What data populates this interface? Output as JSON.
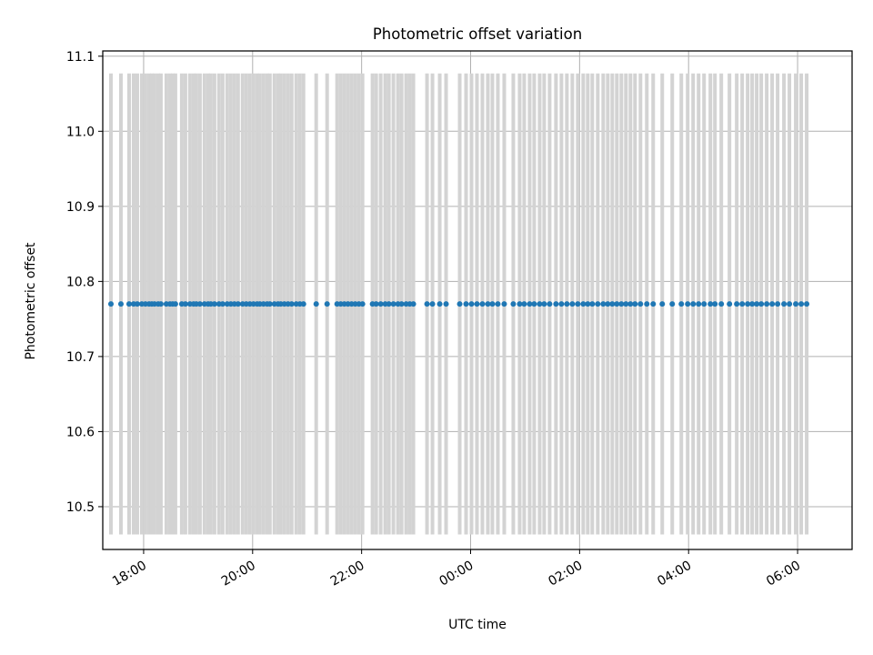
{
  "colors": {
    "marker": "#1f77b4",
    "errorbar": "#d3d3d3",
    "grid": "#b0b0b0",
    "axes": "#000000",
    "background": "#ffffff"
  },
  "chart_data": {
    "type": "scatter",
    "title": "Photometric offset variation",
    "xlabel": "UTC time",
    "ylabel": "Photometric offset",
    "grid": true,
    "x_format": "time HH:MM, labels rotated 30 degrees",
    "xlim": [
      "17:15",
      "31:00"
    ],
    "ylim": [
      10.443,
      11.107
    ],
    "x_ticks": [
      "18:00",
      "20:00",
      "22:00",
      "00:00",
      "02:00",
      "04:00",
      "06:00"
    ],
    "y_ticks": [
      "10.5",
      "10.6",
      "10.7",
      "10.8",
      "10.9",
      "11.0",
      "11.1"
    ],
    "series": [
      {
        "marker": "dot",
        "errorbar": {
          "low": 10.463,
          "high": 11.077
        },
        "y": 10.77,
        "x": [
          "17:24",
          "17:35",
          "17:44",
          "17:49",
          "17:53",
          "17:58",
          "18:02",
          "18:06",
          "18:09",
          "18:12",
          "18:16",
          "18:19",
          "18:25",
          "18:29",
          "18:32",
          "18:35",
          "18:42",
          "18:46",
          "18:51",
          "18:55",
          "18:58",
          "19:02",
          "19:07",
          "19:11",
          "19:14",
          "19:18",
          "19:23",
          "19:27",
          "19:32",
          "19:36",
          "19:40",
          "19:44",
          "19:49",
          "19:53",
          "19:57",
          "20:01",
          "20:05",
          "20:08",
          "20:12",
          "20:16",
          "20:19",
          "20:24",
          "20:28",
          "20:31",
          "20:35",
          "20:39",
          "20:43",
          "20:48",
          "20:52",
          "20:56",
          "21:10",
          "21:22",
          "21:33",
          "21:37",
          "21:41",
          "21:45",
          "21:49",
          "21:53",
          "21:57",
          "22:01",
          "22:12",
          "22:16",
          "22:21",
          "22:26",
          "22:30",
          "22:35",
          "22:40",
          "22:44",
          "22:49",
          "22:53",
          "22:57",
          "23:12",
          "23:18",
          "23:26",
          "23:33",
          "23:48",
          "23:55",
          "24:01",
          "24:07",
          "24:13",
          "24:19",
          "24:24",
          "24:30",
          "24:37",
          "24:47",
          "24:54",
          "24:59",
          "25:05",
          "25:10",
          "25:16",
          "25:21",
          "25:27",
          "25:34",
          "25:40",
          "25:46",
          "25:52",
          "25:58",
          "26:04",
          "26:09",
          "26:14",
          "26:20",
          "26:26",
          "26:31",
          "26:36",
          "26:41",
          "26:46",
          "26:51",
          "26:56",
          "27:01",
          "27:07",
          "27:14",
          "27:21",
          "27:31",
          "27:42",
          "27:52",
          "27:59",
          "28:05",
          "28:11",
          "28:17",
          "28:24",
          "28:29",
          "28:36",
          "28:45",
          "28:53",
          "28:59",
          "29:05",
          "29:10",
          "29:15",
          "29:20",
          "29:26",
          "29:32",
          "29:38",
          "29:45",
          "29:51",
          "29:58",
          "30:04",
          "30:10"
        ]
      }
    ]
  }
}
